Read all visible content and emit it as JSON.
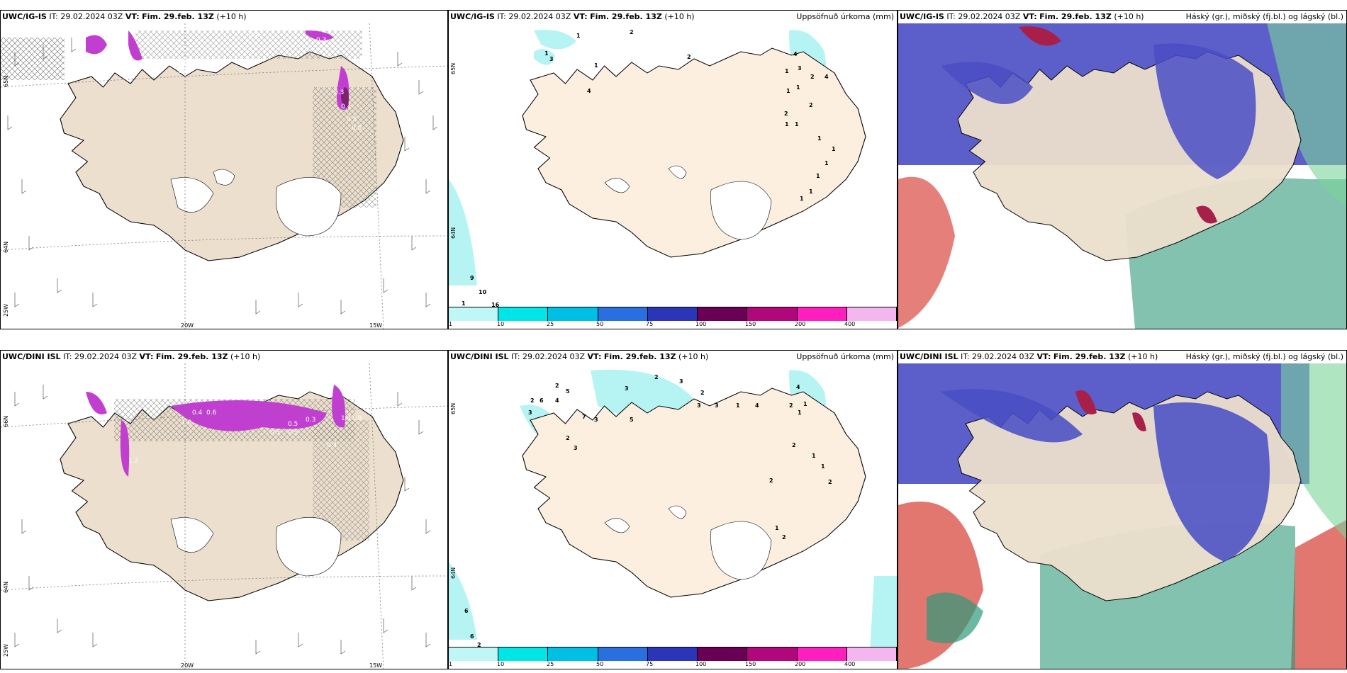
{
  "figure": {
    "rows": [
      {
        "model": "UWC/IG-IS",
        "it_label": "IT:",
        "it_value": "29.02.2024 03Z",
        "vt_label": "VT:",
        "vt_value": "Fim. 29.feb. 13Z",
        "lead": "(+10 h)",
        "left_axis": {
          "lat_top": "65N",
          "lat_mid": "64N",
          "lon_corner": "25W",
          "lon_a": "20W",
          "lon_b": "15W"
        },
        "mid_axis": {
          "lat_top": "65N",
          "lat_mid": "64N"
        },
        "precip_numbers": [
          "1",
          "2",
          "1",
          "3",
          "1",
          "4",
          "2",
          "4",
          "3",
          "2",
          "4",
          "1",
          "1",
          "1",
          "2",
          "1",
          "1",
          "1",
          "1",
          "1",
          "1",
          "9",
          "10",
          "1",
          "16",
          "2",
          "1",
          "1"
        ],
        "wind_values": [
          "1",
          "0.1",
          "0.4",
          "0.2",
          "0.3",
          "0.3",
          "0.4",
          "0.5",
          "0.5"
        ]
      },
      {
        "model": "UWC/DINI ISL",
        "it_label": "IT:",
        "it_value": "29.02.2024 03Z",
        "vt_label": "VT:",
        "vt_value": "Fim. 29.feb. 13Z",
        "lead": "(+10 h)",
        "left_axis": {
          "lat_top": "66N",
          "lat_mid": "64N",
          "lon_corner": "25W",
          "lon_a": "20W",
          "lon_b": "15W"
        },
        "mid_axis": {
          "lat_top": "65N",
          "lat_mid": "64N"
        },
        "precip_numbers": [
          "2",
          "5",
          "2",
          "6",
          "3",
          "4",
          "7",
          "3",
          "2",
          "3",
          "3",
          "3",
          "1",
          "2",
          "4",
          "3",
          "5",
          "2",
          "3",
          "4",
          "2",
          "1",
          "1",
          "2",
          "1",
          "1",
          "2",
          "2",
          "1",
          "2",
          "6",
          "6",
          "2"
        ],
        "wind_values": [
          "1.2",
          "1.0",
          "0.4",
          "0.6",
          "0.3",
          "0.5",
          "0.5",
          "0.4",
          "1.4",
          "1.9",
          "0.5"
        ]
      }
    ],
    "precip_title": "Uppsöfnuð úrkoma (mm)",
    "cloud_title": "Háský (gr.), miðský (fj.bl.) og lágský (bl.)",
    "colorbar": {
      "ticks": [
        "1",
        "10",
        "25",
        "50",
        "75",
        "100",
        "150",
        "200",
        "400"
      ],
      "colors": [
        "#bff7f7",
        "#00e5e5",
        "#00bfe5",
        "#2a6fe0",
        "#2a35b8",
        "#6a0055",
        "#b0087a",
        "#ff1fbf",
        "#f3b6ef"
      ]
    },
    "colors": {
      "land": "#ecdfcd",
      "land_mid": "#fcefe0",
      "sea": "#ffffff",
      "precip_light": "#b6f4f4",
      "snow_purple": "#c13fd0",
      "snow_dark": "#7a2470",
      "cloud_high": "#4a4ec4",
      "cloud_mid": "#2e9a7a",
      "cloud_low": "#d84a40",
      "coast": "#000000"
    }
  }
}
